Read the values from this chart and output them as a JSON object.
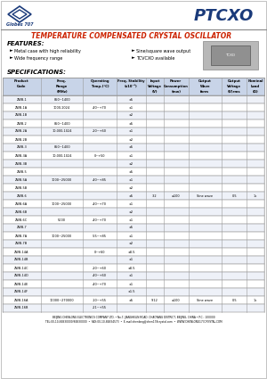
{
  "title_main": "PTCXO",
  "title_sub": "TEMPERATURE COMPENSATED CRYSTAL OSCILLATOR",
  "features_title": "FEATURES:",
  "features_left": [
    "Metal case with high reliability",
    "Wide frequency range"
  ],
  "features_right": [
    "Sine/square wave output",
    "TCVCXO available"
  ],
  "specs_title": "SPECIFICATIONS:",
  "col_headers_line1": [
    "Product",
    "Freq.",
    "Operating",
    "Freq. Stability",
    "Input",
    "Power",
    "Output",
    "Output",
    "Nominal"
  ],
  "col_headers_line2": [
    "Code",
    "Range",
    "Temp.(°C)",
    "(x10⁻⁶)",
    "Voltage",
    "Consumption",
    "Wave",
    "Voltage",
    "Load"
  ],
  "col_headers_line3": [
    "",
    "(MHz)",
    "",
    "",
    "(V)",
    "(mw)",
    "form",
    "(V)rms",
    "(Ω)"
  ],
  "rows": [
    [
      "ZWB-1",
      "850~1400",
      "",
      "±5",
      "",
      "",
      "",
      "",
      ""
    ],
    [
      "ZWB-1A",
      "1000,1024",
      "-40~+70",
      "±1",
      "",
      "",
      "",
      "",
      ""
    ],
    [
      "ZWB-1B",
      "",
      "",
      "±2",
      "",
      "",
      "",
      "",
      ""
    ],
    [
      "ZWB-2",
      "850~1400",
      "",
      "±5",
      "",
      "",
      "",
      "",
      ""
    ],
    [
      "ZWB-2A",
      "10,000,1024",
      "-20~+60",
      "±1",
      "",
      "",
      "",
      "",
      ""
    ],
    [
      "ZWB-2B",
      "",
      "",
      "±2",
      "",
      "",
      "",
      "",
      ""
    ],
    [
      "ZWB-3",
      "850~1400",
      "",
      "±5",
      "",
      "",
      "",
      "",
      ""
    ],
    [
      "ZWB-3A",
      "10,000,1024",
      "0~+50",
      "±1",
      "",
      "",
      "",
      "",
      ""
    ],
    [
      "ZWB-3B",
      "",
      "",
      "±2",
      "",
      "",
      "",
      "",
      ""
    ],
    [
      "ZWB-5",
      "",
      "",
      "±5",
      "",
      "",
      "",
      "",
      ""
    ],
    [
      "ZWB-5A",
      "1000~25000",
      "-40~+85",
      "±1",
      "",
      "",
      "",
      "",
      ""
    ],
    [
      "ZWB-5B",
      "",
      "",
      "±2",
      "",
      "",
      "",
      "",
      ""
    ],
    [
      "ZWB-6",
      "",
      "",
      "±5",
      "3.2",
      "≤100",
      "Sine wave",
      "0.5",
      "1k"
    ],
    [
      "ZWB-6A",
      "1000~25000",
      "-40~+70",
      "±1",
      "",
      "",
      "",
      "",
      ""
    ],
    [
      "ZWB-6B",
      "",
      "",
      "±2",
      "",
      "",
      "",
      "",
      ""
    ],
    [
      "ZWB-6C",
      "5000",
      "-40~+70",
      "±1",
      "",
      "",
      "",
      "",
      ""
    ],
    [
      "ZWB-7",
      "",
      "",
      "±5",
      "",
      "",
      "",
      "",
      ""
    ],
    [
      "ZWB-7A",
      "1000~25000",
      "-55~+85",
      "±1",
      "",
      "",
      "",
      "",
      ""
    ],
    [
      "ZWB-7B",
      "",
      "",
      "±2",
      "",
      "",
      "",
      "",
      ""
    ],
    [
      "ZWB-14A",
      "",
      "0~+60",
      "±0.5",
      "",
      "",
      "",
      "",
      ""
    ],
    [
      "ZWB-14B",
      "",
      "",
      "±1",
      "",
      "",
      "",
      "",
      ""
    ],
    [
      "ZWB-14C",
      "",
      "-20~+60",
      "±0.5",
      "",
      "",
      "",
      "",
      ""
    ],
    [
      "ZWB-14D",
      "",
      "-40~+60",
      "±1",
      "",
      "",
      "",
      "",
      ""
    ],
    [
      "ZWB-14E",
      "",
      "-40~+70",
      "±1",
      "",
      "",
      "",
      "",
      ""
    ],
    [
      "ZWB-14F",
      "",
      "",
      "±1.5",
      "",
      "",
      "",
      "",
      ""
    ],
    [
      "ZWB-16A",
      "10000~270000",
      "-10~+55",
      "±5",
      "9.12",
      "≤100",
      "Sine wave",
      "0.5",
      "1k"
    ],
    [
      "ZWB-16B",
      "",
      "-21~+55",
      "",
      "",
      "",
      "",
      "",
      ""
    ]
  ],
  "footer_line1": "BEIJING CHENLONG ELECTRONICS COMPANY LTD. • No.7, JIANGHELIN ROAD, CHAOYANG DISTRICT, BEIJING, CHINA • P.C.: 100000",
  "footer_line2": "TEL:00-10-84830000/84830000  •  FAX:00-10-84834573  •  E-mail:chenlong@chen178crystal.com  •  WWW.CHENLONG173CRYSTAL.COM",
  "bg_color": "#ffffff",
  "header_bg": "#c8d4e8",
  "border_color": "#999999",
  "blue_dark": "#1a3a7a",
  "red_title": "#cc2200"
}
